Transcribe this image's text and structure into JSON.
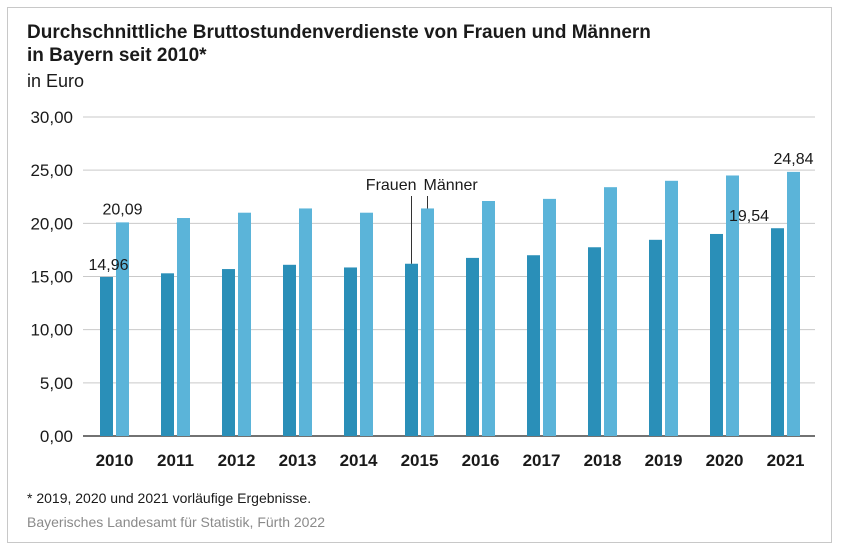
{
  "chart_data": {
    "type": "bar",
    "title": "Durchschnittliche Bruttostundenverdienste von Frauen und Männern in Bayern seit 2010*",
    "title_lines": [
      "Durchschnittliche Bruttostundenverdienste von Frauen und Männern",
      "in Bayern seit 2010*"
    ],
    "subtitle": "in Euro",
    "categories": [
      "2010",
      "2011",
      "2012",
      "2013",
      "2014",
      "2015",
      "2016",
      "2017",
      "2018",
      "2019",
      "2020",
      "2021"
    ],
    "series": [
      {
        "name": "Frauen",
        "color": "#2a8fb8",
        "values": [
          14.96,
          15.3,
          15.7,
          16.1,
          15.85,
          16.2,
          16.75,
          17.0,
          17.75,
          18.45,
          19.0,
          19.54
        ]
      },
      {
        "name": "Männer",
        "color": "#5bb4d9",
        "values": [
          20.09,
          20.5,
          21.0,
          21.4,
          21.0,
          21.4,
          22.1,
          22.3,
          23.4,
          24.0,
          24.5,
          24.84
        ]
      }
    ],
    "ylim": [
      0,
      30
    ],
    "yticks": [
      "0,00",
      "5,00",
      "10,00",
      "15,00",
      "20,00",
      "25,00",
      "30,00"
    ],
    "ytick_values": [
      0,
      5,
      10,
      15,
      20,
      25,
      30
    ],
    "grid": true,
    "data_labels": [
      {
        "series": 0,
        "index": 0,
        "text": "14,96"
      },
      {
        "series": 1,
        "index": 0,
        "text": "20,09"
      },
      {
        "series": 0,
        "index": 11,
        "text": "19,54"
      },
      {
        "series": 1,
        "index": 11,
        "text": "24,84"
      }
    ],
    "series_callout_year_index": 5
  },
  "footnote": "*  2019, 2020 und 2021 vorläufige Ergebnisse.",
  "source": "Bayerisches Landesamt für Statistik, Fürth 2022"
}
